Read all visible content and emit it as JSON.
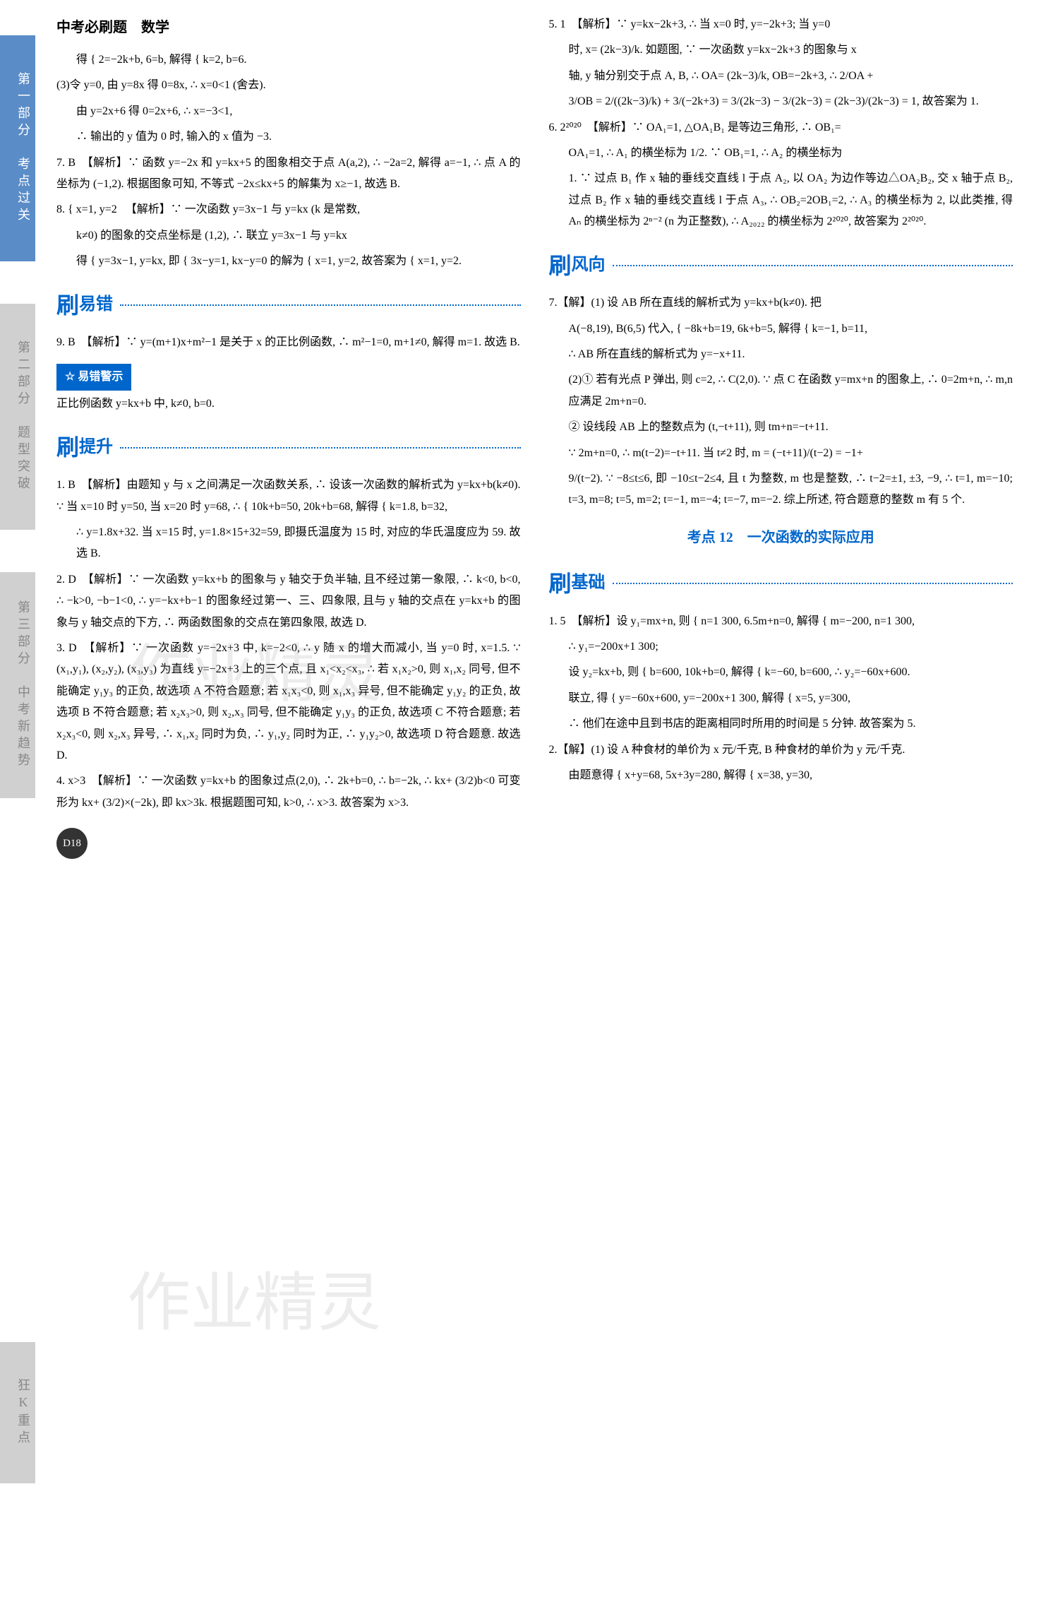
{
  "header": {
    "title": "中考必刷题　数学"
  },
  "sidebar": {
    "tabs": [
      {
        "label": "第一部分　考点过关"
      },
      {
        "label": "第二部分　题型突破"
      },
      {
        "label": "第三部分　中考新趋势"
      },
      {
        "label": "狂K重点"
      }
    ]
  },
  "colors": {
    "accent": "#0066cc",
    "tab_active_bg": "#5a8cc7",
    "tab_inactive_bg": "#d0d0d0",
    "watermark": "rgba(150,150,150,0.18)"
  },
  "sections": {
    "yicuo": {
      "big": "刷",
      "label": "易错"
    },
    "tisheng": {
      "big": "刷",
      "label": "提升"
    },
    "fengxiang": {
      "big": "刷",
      "label": "风向"
    },
    "jichu": {
      "big": "刷",
      "label": "基础"
    },
    "kaodian12": "考点 12　一次函数的实际应用",
    "warn": "易错警示"
  },
  "left": {
    "p_sys1": "得 { 2=−2k+b, 6=b, 解得 { k=2, b=6.",
    "p_3": "(3)令 y=0, 由 y=8x 得 0=8x, ∴ x=0<1 (舍去).",
    "p_3b": "由 y=2x+6 得 0=2x+6, ∴ x=−3<1,",
    "p_3c": "∴ 输出的 y 值为 0 时, 输入的 x 值为 −3.",
    "q7": "7. B　【解析】∵ 函数 y=−2x 和 y=kx+5 的图象相交于点 A(a,2), ∴ −2a=2, 解得 a=−1, ∴ 点 A 的坐标为 (−1,2). 根据图象可知, 不等式 −2x≤kx+5 的解集为 x≥−1, 故选 B.",
    "q8a": "8. { x=1, y=2 　【解析】∵ 一次函数 y=3x−1 与 y=kx (k 是常数,",
    "q8b": "k≠0) 的图象的交点坐标是 (1,2), ∴ 联立 y=3x−1 与 y=kx",
    "q8c": "得 { y=3x−1, y=kx, 即 { 3x−y=1, kx−y=0 的解为 { x=1, y=2, 故答案为 { x=1, y=2.",
    "q9": "9. B　【解析】∵ y=(m+1)x+m²−1 是关于 x 的正比例函数, ∴ m²−1=0, m+1≠0, 解得 m=1. 故选 B.",
    "warn_text": "正比例函数 y=kx+b 中, k≠0, b=0.",
    "t1": "1. B　【解析】由题知 y 与 x 之间满足一次函数关系, ∴ 设该一次函数的解析式为 y=kx+b(k≠0). ∵ 当 x=10 时 y=50, 当 x=20 时 y=68, ∴ { 10k+b=50, 20k+b=68, 解得 { k=1.8, b=32,",
    "t1b": "∴ y=1.8x+32. 当 x=15 时, y=1.8×15+32=59, 即摄氏温度为 15 时, 对应的华氏温度应为 59. 故选 B.",
    "t2": "2. D　【解析】∵ 一次函数 y=kx+b 的图象与 y 轴交于负半轴, 且不经过第一象限, ∴ k<0, b<0, ∴ −k>0, −b−1<0, ∴ y=−kx+b−1 的图象经过第一、三、四象限, 且与 y 轴的交点在 y=kx+b 的图象与 y 轴交点的下方, ∴ 两函数图象的交点在第四象限, 故选 D.",
    "t3": "3. D　【解析】∵ 一次函数 y=−2x+3 中, k=−2<0, ∴ y 随 x 的增大而减小, 当 y=0 时, x=1.5. ∵ (x₁,y₁), (x₂,y₂), (x₃,y₃) 为直线 y=−2x+3 上的三个点, 且 x₁<x₂<x₃, ∴ 若 x₁x₂>0, 则 x₁,x₂ 同号, 但不能确定 y₁y₃ 的正负, 故选项 A 不符合题意; 若 x₁x₃<0, 则 x₁,x₃ 异号, 但不能确定 y₁y₂ 的正负, 故选项 B 不符合题意; 若 x₂x₃>0, 则 x₂,x₃ 同号, 但不能确定 y₁y₃ 的正负, 故选项 C 不符合题意; 若 x₂x₃<0, 则 x₂,x₃ 异号, ∴ x₁,x₂ 同时为负, ∴ y₁,y₂ 同时为正, ∴ y₁y₂>0, 故选项 D 符合题意. 故选 D.",
    "t4": "4. x>3　【解析】∵ 一次函数 y=kx+b 的图象过点(2,0), ∴ 2k+b=0, ∴ b=−2k, ∴ kx+ (3/2)b<0 可变形为 kx+ (3/2)×(−2k), 即 kx>3k. 根据题图可知, k>0, ∴ x>3. 故答案为 x>3."
  },
  "right": {
    "q5": "5. 1　【解析】∵ y=kx−2k+3, ∴ 当 x=0 时, y=−2k+3; 当 y=0",
    "q5b": "时, x= (2k−3)/k. 如题图, ∵ 一次函数 y=kx−2k+3 的图象与 x",
    "q5c": "轴, y 轴分别交于点 A, B, ∴ OA= (2k−3)/k, OB=−2k+3, ∴ 2/OA +",
    "q5d": "3/OB = 2/((2k−3)/k) + 3/(−2k+3) = 3/(2k−3) − 3/(2k−3) = (2k−3)/(2k−3) = 1, 故答案为 1.",
    "q6": "6. 2²⁰²⁰　【解析】∵ OA₁=1, △OA₁B₁ 是等边三角形, ∴ OB₁=",
    "q6b": "OA₁=1, ∴ A₁ 的横坐标为 1/2. ∵ OB₁=1, ∴ A₂ 的横坐标为",
    "q6c": "1. ∵ 过点 B₁ 作 x 轴的垂线交直线 l 于点 A₂, 以 OA₂ 为边作等边△OA₂B₂, 交 x 轴于点 B₂, 过点 B₂ 作 x 轴的垂线交直线 l 于点 A₃, ∴ OB₂=2OB₁=2, ∴ A₃ 的横坐标为 2, 以此类推, 得 Aₙ 的横坐标为 2ⁿ⁻² (n 为正整数), ∴ A₂₀₂₂ 的横坐标为 2²⁰²⁰, 故答案为 2²⁰²⁰.",
    "q7": "7.【解】(1) 设 AB 所在直线的解析式为 y=kx+b(k≠0). 把",
    "q7b": "A(−8,19), B(6,5) 代入, { −8k+b=19, 6k+b=5, 解得 { k=−1, b=11,",
    "q7c": "∴ AB 所在直线的解析式为 y=−x+11.",
    "q7d": "(2)① 若有光点 P 弹出, 则 c=2, ∴ C(2,0). ∵ 点 C 在函数 y=mx+n 的图象上, ∴ 0=2m+n, ∴ m,n 应满足 2m+n=0.",
    "q7e": "② 设线段 AB 上的整数点为 (t,−t+11), 则 tm+n=−t+11.",
    "q7f": "∵ 2m+n=0, ∴ m(t−2)=−t+11. 当 t≠2 时, m = (−t+11)/(t−2) = −1+",
    "q7g": "9/(t−2). ∵ −8≤t≤6, 即 −10≤t−2≤4, 且 t 为整数, m 也是整数, ∴ t−2=±1, ±3, −9, ∴ t=1, m=−10; t=3, m=8; t=5, m=2; t=−1, m=−4; t=−7, m=−2. 综上所述, 符合题意的整数 m 有 5 个.",
    "j1": "1. 5　【解析】设 y₁=mx+n, 则 { n=1 300, 6.5m+n=0, 解得 { m=−200, n=1 300,",
    "j1b": "∴ y₁=−200x+1 300;",
    "j1c": "设 y₂=kx+b, 则 { b=600, 10k+b=0, 解得 { k=−60, b=600, ∴ y₂=−60x+600.",
    "j1d": "联立, 得 { y=−60x+600, y=−200x+1 300, 解得 { x=5, y=300,",
    "j1e": "∴ 他们在途中且到书店的距离相同时所用的时间是 5 分钟. 故答案为 5.",
    "j2": "2.【解】(1) 设 A 种食材的单价为 x 元/千克, B 种食材的单价为 y 元/千克.",
    "j2b": "由题意得 { x+y=68, 5x+3y=280, 解得 { x=38, y=30,"
  },
  "page_number": "D18",
  "watermark": "作业精灵"
}
